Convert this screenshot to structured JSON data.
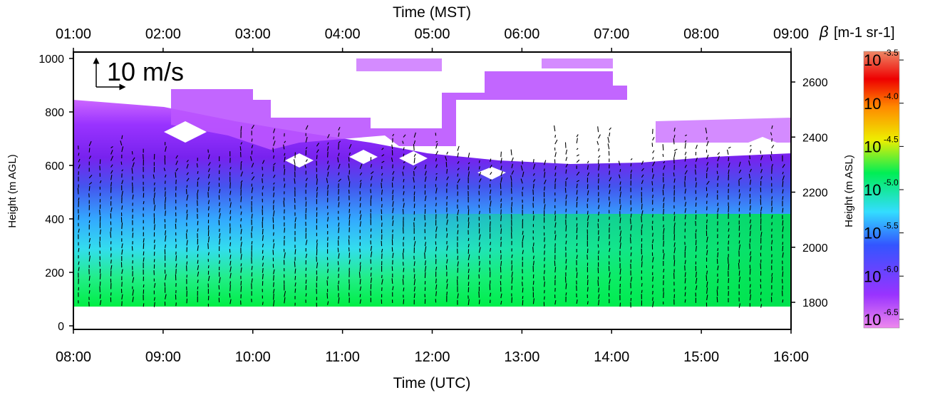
{
  "chart_data": {
    "type": "heatmap",
    "title": "",
    "x_bottom": {
      "label": "Time (UTC)",
      "range": [
        "08:00",
        "16:00"
      ],
      "ticks": [
        "08:00",
        "09:00",
        "10:00",
        "11:00",
        "12:00",
        "13:00",
        "14:00",
        "15:00",
        "16:00"
      ]
    },
    "x_top": {
      "label": "Time (MST)",
      "ticks": [
        "01:00",
        "02:00",
        "03:00",
        "04:00",
        "05:00",
        "06:00",
        "07:00",
        "08:00",
        "09:00"
      ]
    },
    "y_left": {
      "label": "Height (m AGL)",
      "range": [
        0,
        1000
      ],
      "ticks": [
        "0",
        "200",
        "400",
        "600",
        "800",
        "1000"
      ]
    },
    "y_right": {
      "label": "Height (m ASL)",
      "ticks": [
        "1800",
        "2000",
        "2200",
        "2400",
        "2600"
      ]
    },
    "colorbar": {
      "label_symbol": "β",
      "label_units": "[m-1 sr-1]",
      "scale": "log",
      "range_log10": [
        -6.6,
        -3.4
      ],
      "ticks_base": "10",
      "ticks_exponents": [
        "-3.5",
        "-4.0",
        "-4.5",
        "-5.0",
        "-5.5",
        "-6.0",
        "-6.5"
      ],
      "colors": [
        "#ee88ee",
        "#9933ff",
        "#3355ff",
        "#33ddff",
        "#00ee55",
        "#eeee00",
        "#ff8800",
        "#ee0000",
        "#ee8866"
      ]
    },
    "wind_reference": {
      "label": "10 m/s"
    },
    "height_columns_m_agl": [
      100,
      200,
      300,
      400,
      500,
      600,
      700,
      800
    ],
    "backscatter_log10_by_height": [
      {
        "time_utc": "08:00",
        "values": [
          -5.4,
          -5.5,
          -5.7,
          -6.0,
          -6.2,
          -6.4,
          -6.5,
          -6.6
        ]
      },
      {
        "time_utc": "09:00",
        "values": [
          -5.4,
          -5.5,
          -5.7,
          -6.0,
          -6.2,
          -6.4,
          -6.5,
          -6.6
        ]
      },
      {
        "time_utc": "10:00",
        "values": [
          -5.3,
          -5.5,
          -5.7,
          -5.9,
          -6.1,
          -6.3,
          -6.5,
          -6.6
        ]
      },
      {
        "time_utc": "11:00",
        "values": [
          -5.2,
          -5.4,
          -5.7,
          -5.9,
          -6.1,
          -6.3,
          -6.5,
          -6.6
        ]
      },
      {
        "time_utc": "12:00",
        "values": [
          -5.1,
          -5.3,
          -5.6,
          -5.9,
          -6.1,
          -6.3,
          -6.5,
          -6.6
        ]
      },
      {
        "time_utc": "13:00",
        "values": [
          -5.1,
          -5.3,
          -5.5,
          -5.8,
          -6.1,
          -6.3,
          -6.5,
          -6.6
        ]
      },
      {
        "time_utc": "14:00",
        "values": [
          -5.0,
          -5.2,
          -5.5,
          -5.8,
          -6.1,
          -6.3,
          -6.5,
          -6.6
        ]
      },
      {
        "time_utc": "15:00",
        "values": [
          -5.0,
          -5.2,
          -5.4,
          -5.7,
          -6.0,
          -6.3,
          -6.5,
          -6.6
        ]
      },
      {
        "time_utc": "16:00",
        "values": [
          -5.0,
          -5.2,
          -5.5,
          -5.8,
          -6.0,
          -6.3,
          -6.5,
          -6.6
        ]
      }
    ]
  }
}
